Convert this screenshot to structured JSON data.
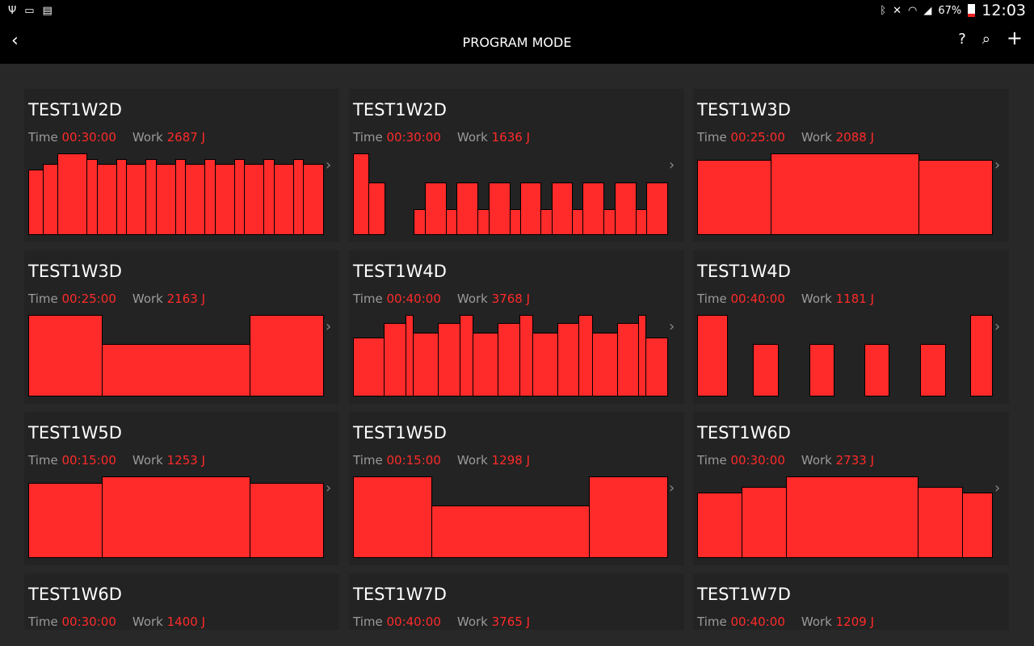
{
  "status": {
    "icons_left": [
      "usb-icon",
      "cast-icon",
      "sim-off-icon"
    ],
    "icons_right": [
      "bluetooth-icon",
      "mute-icon",
      "wifi-icon",
      "signal-icon"
    ],
    "battery": "67%",
    "time": "12:03"
  },
  "appbar": {
    "title": "PROGRAM MODE",
    "back_icon": "chevron-left-icon",
    "actions": [
      "help-icon",
      "search-icon",
      "add-icon"
    ],
    "help": "?",
    "search": "⌕",
    "add": "+"
  },
  "labels": {
    "time": "Time",
    "work": "Work"
  },
  "colors": {
    "accent": "#ff2a2a",
    "card": "#232323",
    "background": "#282828"
  },
  "programs": [
    {
      "name": "TEST1W2D",
      "time": "00:30:00",
      "work": "2687 J",
      "segments": [
        [
          17,
          80
        ],
        [
          17,
          87
        ],
        [
          36,
          100
        ],
        [
          12,
          93
        ],
        [
          23,
          87
        ],
        [
          12,
          93
        ],
        [
          23,
          87
        ],
        [
          12,
          93
        ],
        [
          23,
          87
        ],
        [
          12,
          93
        ],
        [
          23,
          87
        ],
        [
          12,
          93
        ],
        [
          23,
          87
        ],
        [
          12,
          93
        ],
        [
          23,
          87
        ],
        [
          12,
          93
        ],
        [
          23,
          87
        ],
        [
          12,
          93
        ],
        [
          24,
          87
        ]
      ]
    },
    {
      "name": "TEST1W2D",
      "time": "00:30:00",
      "work": "1636 J",
      "segments": [
        [
          19,
          100
        ],
        [
          19,
          64
        ],
        [
          39,
          0
        ],
        [
          13,
          32
        ],
        [
          26,
          64
        ],
        [
          13,
          32
        ],
        [
          26,
          64
        ],
        [
          13,
          32
        ],
        [
          26,
          64
        ],
        [
          13,
          32
        ],
        [
          25,
          64
        ],
        [
          13,
          32
        ],
        [
          25,
          64
        ],
        [
          13,
          32
        ],
        [
          26,
          64
        ],
        [
          13,
          32
        ],
        [
          26,
          64
        ],
        [
          13,
          32
        ],
        [
          26,
          64
        ]
      ]
    },
    {
      "name": "TEST1W3D",
      "time": "00:25:00",
      "work": "2088 J",
      "segments": [
        [
          91,
          92
        ],
        [
          183,
          100
        ],
        [
          91,
          92
        ]
      ]
    },
    {
      "name": "TEST1W3D",
      "time": "00:25:00",
      "work": "2163 J",
      "segments": [
        [
          91,
          100
        ],
        [
          183,
          64
        ],
        [
          91,
          100
        ]
      ]
    },
    {
      "name": "TEST1W4D",
      "time": "00:40:00",
      "work": "3768 J",
      "segments": [
        [
          39,
          72
        ],
        [
          27,
          90
        ],
        [
          8,
          100
        ],
        [
          31,
          78
        ],
        [
          27,
          90
        ],
        [
          16,
          100
        ],
        [
          31,
          78
        ],
        [
          27,
          90
        ],
        [
          16,
          100
        ],
        [
          31,
          78
        ],
        [
          27,
          90
        ],
        [
          16,
          100
        ],
        [
          31,
          78
        ],
        [
          27,
          90
        ],
        [
          8,
          100
        ],
        [
          27,
          72
        ]
      ]
    },
    {
      "name": "TEST1W4D",
      "time": "00:40:00",
      "work": "1181 J",
      "segments": [
        [
          36,
          100
        ],
        [
          33,
          0
        ],
        [
          30,
          64
        ],
        [
          40,
          0
        ],
        [
          29,
          64
        ],
        [
          40,
          0
        ],
        [
          29,
          64
        ],
        [
          40,
          0
        ],
        [
          30,
          64
        ],
        [
          32,
          0
        ],
        [
          26,
          100
        ]
      ]
    },
    {
      "name": "TEST1W5D",
      "time": "00:15:00",
      "work": "1253 J",
      "segments": [
        [
          91,
          92
        ],
        [
          183,
          100
        ],
        [
          91,
          92
        ]
      ]
    },
    {
      "name": "TEST1W5D",
      "time": "00:15:00",
      "work": "1298 J",
      "segments": [
        [
          97,
          100
        ],
        [
          195,
          64
        ],
        [
          97,
          100
        ]
      ]
    },
    {
      "name": "TEST1W6D",
      "time": "00:30:00",
      "work": "2733 J",
      "segments": [
        [
          55,
          80
        ],
        [
          54,
          87
        ],
        [
          165,
          100
        ],
        [
          54,
          87
        ],
        [
          37,
          80
        ]
      ]
    },
    {
      "name": "TEST1W6D",
      "time": "00:30:00",
      "work": "1400 J",
      "segments": []
    },
    {
      "name": "TEST1W7D",
      "time": "00:40:00",
      "work": "3765 J",
      "segments": []
    },
    {
      "name": "TEST1W7D",
      "time": "00:40:00",
      "work": "1209 J",
      "segments": []
    }
  ]
}
